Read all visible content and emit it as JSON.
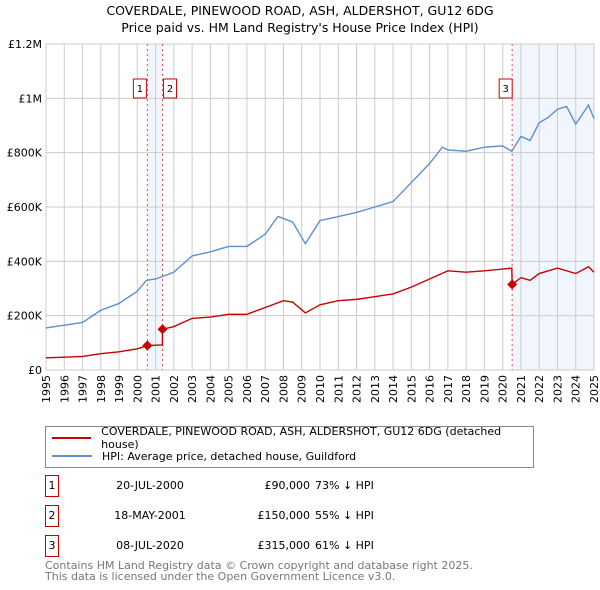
{
  "chart_data": {
    "type": "line",
    "title": "COVERDALE, PINEWOOD ROAD, ASH, ALDERSHOT, GU12 6DG",
    "subtitle": "Price paid vs. HM Land Registry's House Price Index (HPI)",
    "xlim": [
      1995,
      2025
    ],
    "ylim": [
      0,
      1200000
    ],
    "x_ticks": [
      "1995",
      "1996",
      "1997",
      "1998",
      "1999",
      "2000",
      "2001",
      "2002",
      "2003",
      "2004",
      "2005",
      "2006",
      "2007",
      "2008",
      "2009",
      "2010",
      "2011",
      "2012",
      "2013",
      "2014",
      "2015",
      "2016",
      "2017",
      "2018",
      "2019",
      "2020",
      "2021",
      "2022",
      "2023",
      "2024",
      "2025"
    ],
    "y_ticks": [
      {
        "v": 0,
        "label": "£0"
      },
      {
        "v": 200000,
        "label": "£200K"
      },
      {
        "v": 400000,
        "label": "£400K"
      },
      {
        "v": 600000,
        "label": "£600K"
      },
      {
        "v": 800000,
        "label": "£800K"
      },
      {
        "v": 1000000,
        "label": "£1M"
      },
      {
        "v": 1200000,
        "label": "£1.2M"
      }
    ],
    "grid": true,
    "series": [
      {
        "name": "COVERDALE, PINEWOOD ROAD, ASH, ALDERSHOT, GU12 6DG (detached house)",
        "color": "#cc0000",
        "points": [
          [
            1995,
            45000
          ],
          [
            1996,
            47000
          ],
          [
            1997,
            50000
          ],
          [
            1998,
            60000
          ],
          [
            1999,
            67000
          ],
          [
            2000,
            78000
          ],
          [
            2000.55,
            90000
          ],
          [
            2001.37,
            92000
          ],
          [
            2001.38,
            150000
          ],
          [
            2002,
            160000
          ],
          [
            2003,
            190000
          ],
          [
            2004,
            195000
          ],
          [
            2005,
            205000
          ],
          [
            2006,
            205000
          ],
          [
            2007,
            230000
          ],
          [
            2008,
            255000
          ],
          [
            2008.5,
            250000
          ],
          [
            2009.2,
            210000
          ],
          [
            2010,
            240000
          ],
          [
            2011,
            255000
          ],
          [
            2012,
            260000
          ],
          [
            2013,
            270000
          ],
          [
            2014,
            280000
          ],
          [
            2015,
            305000
          ],
          [
            2016,
            335000
          ],
          [
            2017,
            365000
          ],
          [
            2018,
            360000
          ],
          [
            2019,
            365000
          ],
          [
            2020.5,
            375000
          ],
          [
            2020.52,
            315000
          ],
          [
            2021,
            340000
          ],
          [
            2021.5,
            330000
          ],
          [
            2022,
            355000
          ],
          [
            2023,
            375000
          ],
          [
            2024,
            355000
          ],
          [
            2024.7,
            380000
          ],
          [
            2025,
            360000
          ]
        ]
      },
      {
        "name": "HPI: Average price, detached house, Guildford",
        "color": "#5b8fd0",
        "points": [
          [
            1995,
            155000
          ],
          [
            1996,
            165000
          ],
          [
            1997,
            175000
          ],
          [
            1998,
            220000
          ],
          [
            1999,
            245000
          ],
          [
            2000,
            290000
          ],
          [
            2000.5,
            330000
          ],
          [
            2001,
            335000
          ],
          [
            2002,
            360000
          ],
          [
            2003,
            420000
          ],
          [
            2004,
            435000
          ],
          [
            2005,
            455000
          ],
          [
            2006,
            455000
          ],
          [
            2007,
            500000
          ],
          [
            2007.7,
            565000
          ],
          [
            2008.5,
            545000
          ],
          [
            2009.2,
            465000
          ],
          [
            2010,
            550000
          ],
          [
            2011,
            565000
          ],
          [
            2012,
            580000
          ],
          [
            2013,
            600000
          ],
          [
            2014,
            620000
          ],
          [
            2015,
            690000
          ],
          [
            2016,
            760000
          ],
          [
            2016.7,
            820000
          ],
          [
            2017,
            810000
          ],
          [
            2018,
            805000
          ],
          [
            2019,
            820000
          ],
          [
            2020,
            825000
          ],
          [
            2020.5,
            805000
          ],
          [
            2021,
            860000
          ],
          [
            2021.5,
            845000
          ],
          [
            2022,
            910000
          ],
          [
            2022.5,
            930000
          ],
          [
            2023,
            960000
          ],
          [
            2023.5,
            970000
          ],
          [
            2024,
            905000
          ],
          [
            2024.7,
            975000
          ],
          [
            2025,
            925000
          ]
        ]
      }
    ],
    "sales": [
      {
        "n": "1",
        "x": 2000.55,
        "y": 90000
      },
      {
        "n": "2",
        "x": 2001.38,
        "y": 150000
      },
      {
        "n": "3",
        "x": 2020.52,
        "y": 315000
      }
    ],
    "shaded": [
      [
        2000.55,
        2001.38
      ],
      [
        2020.52,
        2025
      ]
    ]
  },
  "legend": [
    "COVERDALE, PINEWOOD ROAD, ASH, ALDERSHOT, GU12 6DG (detached house)",
    "HPI: Average price, detached house, Guildford"
  ],
  "transactions": [
    {
      "n": "1",
      "date": "20-JUL-2000",
      "price": "£90,000",
      "hpi": "73% ↓ HPI"
    },
    {
      "n": "2",
      "date": "18-MAY-2001",
      "price": "£150,000",
      "hpi": "55% ↓ HPI"
    },
    {
      "n": "3",
      "date": "08-JUL-2020",
      "price": "£315,000",
      "hpi": "61% ↓ HPI"
    }
  ],
  "footer": [
    "Contains HM Land Registry data © Crown copyright and database right 2025.",
    "This data is licensed under the Open Government Licence v3.0."
  ]
}
